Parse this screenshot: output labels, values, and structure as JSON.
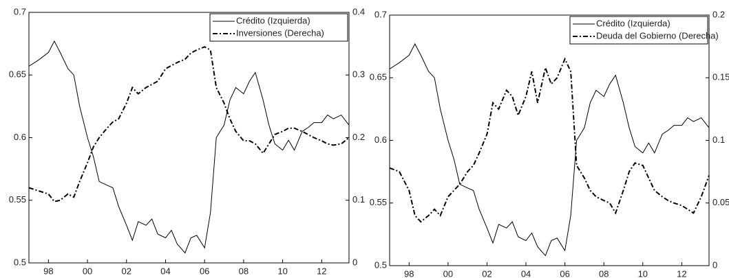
{
  "chart_data": [
    {
      "type": "line",
      "legend": "upper right",
      "x": [
        1997,
        1997.5,
        1998,
        1998.3,
        1998.6,
        1999,
        1999.3,
        1999.6,
        2000,
        2000.3,
        2000.6,
        2001,
        2001.3,
        2001.6,
        2002,
        2002.3,
        2002.6,
        2003,
        2003.3,
        2003.6,
        2004,
        2004.3,
        2004.6,
        2005,
        2005.3,
        2005.6,
        2006,
        2006.3,
        2006.6,
        2007,
        2007.3,
        2007.6,
        2008,
        2008.3,
        2008.6,
        2009,
        2009.3,
        2009.6,
        2010,
        2010.3,
        2010.6,
        2011,
        2011.3,
        2011.6,
        2012,
        2012.3,
        2012.6,
        2013,
        2013.4
      ],
      "xlim": [
        1997,
        2013.4
      ],
      "xticks": [
        {
          "value": 1998,
          "label": "98"
        },
        {
          "value": 2000,
          "label": "00"
        },
        {
          "value": 2002,
          "label": "02"
        },
        {
          "value": 2004,
          "label": "04"
        },
        {
          "value": 2006,
          "label": "06"
        },
        {
          "value": 2008,
          "label": "08"
        },
        {
          "value": 2010,
          "label": "10"
        },
        {
          "value": 2012,
          "label": "12"
        }
      ],
      "ylim": [
        0.5,
        0.7
      ],
      "yticks": [
        0.5,
        0.55,
        0.6,
        0.65,
        0.7
      ],
      "y2lim": [
        0,
        0.4
      ],
      "y2ticks": [
        0,
        0.1,
        0.2,
        0.3,
        0.4
      ],
      "series": [
        {
          "name": "Crédito  (Izquierda)",
          "color": "#000000",
          "style": "solid",
          "axis": "y",
          "values": [
            0.657,
            0.662,
            0.668,
            0.677,
            0.668,
            0.655,
            0.65,
            0.625,
            0.6,
            0.585,
            0.565,
            0.562,
            0.56,
            0.545,
            0.53,
            0.518,
            0.533,
            0.53,
            0.535,
            0.523,
            0.52,
            0.526,
            0.515,
            0.508,
            0.52,
            0.522,
            0.512,
            0.54,
            0.6,
            0.61,
            0.63,
            0.64,
            0.635,
            0.645,
            0.652,
            0.63,
            0.61,
            0.595,
            0.59,
            0.598,
            0.59,
            0.605,
            0.608,
            0.612,
            0.612,
            0.618,
            0.615,
            0.618,
            0.61
          ]
        },
        {
          "name": "Inversiones  (Derecha)",
          "color": "#000000",
          "style": "dashdot",
          "axis": "y2",
          "values": [
            0.12,
            0.115,
            0.11,
            0.098,
            0.1,
            0.11,
            0.105,
            0.13,
            0.16,
            0.185,
            0.2,
            0.215,
            0.225,
            0.23,
            0.255,
            0.28,
            0.27,
            0.28,
            0.285,
            0.29,
            0.31,
            0.315,
            0.32,
            0.325,
            0.335,
            0.34,
            0.345,
            0.34,
            0.28,
            0.255,
            0.23,
            0.21,
            0.195,
            0.195,
            0.19,
            0.175,
            0.19,
            0.205,
            0.21,
            0.215,
            0.215,
            0.21,
            0.205,
            0.2,
            0.195,
            0.19,
            0.188,
            0.19,
            0.2
          ]
        }
      ]
    },
    {
      "type": "line",
      "legend": "upper right",
      "x": [
        1997,
        1997.5,
        1998,
        1998.3,
        1998.6,
        1999,
        1999.3,
        1999.6,
        2000,
        2000.3,
        2000.6,
        2001,
        2001.3,
        2001.6,
        2002,
        2002.3,
        2002.6,
        2003,
        2003.3,
        2003.6,
        2004,
        2004.3,
        2004.6,
        2005,
        2005.3,
        2005.6,
        2006,
        2006.3,
        2006.6,
        2007,
        2007.3,
        2007.6,
        2008,
        2008.3,
        2008.6,
        2009,
        2009.3,
        2009.6,
        2010,
        2010.3,
        2010.6,
        2011,
        2011.3,
        2011.6,
        2012,
        2012.3,
        2012.6,
        2013,
        2013.4
      ],
      "xlim": [
        1997,
        2013.4
      ],
      "xticks": [
        {
          "value": 1998,
          "label": "98"
        },
        {
          "value": 2000,
          "label": "00"
        },
        {
          "value": 2002,
          "label": "02"
        },
        {
          "value": 2004,
          "label": "04"
        },
        {
          "value": 2006,
          "label": "06"
        },
        {
          "value": 2008,
          "label": "08"
        },
        {
          "value": 2010,
          "label": "10"
        },
        {
          "value": 2012,
          "label": "12"
        }
      ],
      "ylim": [
        0.5,
        0.7
      ],
      "yticks": [
        0.5,
        0.55,
        0.6,
        0.65,
        0.7
      ],
      "y2lim": [
        0,
        0.2
      ],
      "y2ticks": [
        0,
        0.05,
        0.1,
        0.15,
        0.2
      ],
      "series": [
        {
          "name": "Crédito  (Izquierda)",
          "color": "#000000",
          "style": "solid",
          "axis": "y",
          "values": [
            0.657,
            0.662,
            0.668,
            0.677,
            0.668,
            0.655,
            0.65,
            0.625,
            0.6,
            0.585,
            0.565,
            0.562,
            0.56,
            0.545,
            0.53,
            0.518,
            0.533,
            0.53,
            0.535,
            0.523,
            0.52,
            0.526,
            0.515,
            0.508,
            0.52,
            0.522,
            0.512,
            0.54,
            0.6,
            0.61,
            0.63,
            0.64,
            0.635,
            0.645,
            0.652,
            0.63,
            0.61,
            0.595,
            0.59,
            0.598,
            0.59,
            0.605,
            0.608,
            0.612,
            0.612,
            0.618,
            0.615,
            0.618,
            0.61
          ]
        },
        {
          "name": "Deuda del Gobierno (Derecha)",
          "color": "#000000",
          "style": "dashdot",
          "axis": "y2",
          "values": [
            0.078,
            0.075,
            0.06,
            0.04,
            0.035,
            0.04,
            0.045,
            0.04,
            0.055,
            0.06,
            0.065,
            0.075,
            0.08,
            0.09,
            0.105,
            0.13,
            0.125,
            0.14,
            0.135,
            0.12,
            0.135,
            0.155,
            0.13,
            0.158,
            0.145,
            0.15,
            0.165,
            0.155,
            0.08,
            0.07,
            0.06,
            0.055,
            0.052,
            0.05,
            0.042,
            0.06,
            0.075,
            0.082,
            0.08,
            0.07,
            0.06,
            0.055,
            0.052,
            0.05,
            0.048,
            0.045,
            0.042,
            0.055,
            0.072
          ]
        }
      ]
    }
  ]
}
